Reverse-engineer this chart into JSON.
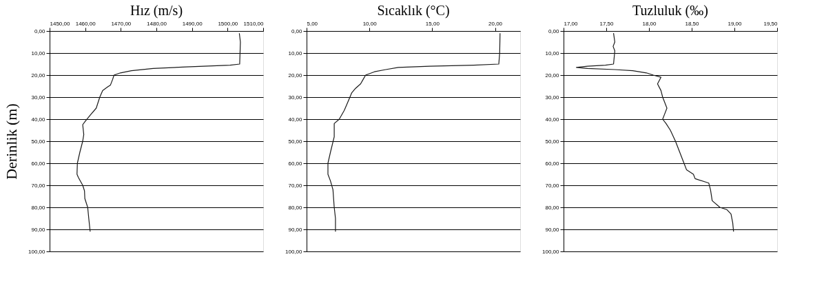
{
  "chart_data": [
    {
      "type": "line",
      "title": "Hız (m/s)",
      "ylabel": "Derinlik (m)",
      "xlim": [
        1450,
        1510
      ],
      "ylim": [
        100,
        0
      ],
      "grid": "y",
      "marker": "none",
      "line_style": "solid",
      "xticks": [
        {
          "value": 1450,
          "label": "1450,00"
        },
        {
          "value": 1460,
          "label": "1460,00"
        },
        {
          "value": 1470,
          "label": "1470,00"
        },
        {
          "value": 1480,
          "label": "1480,00"
        },
        {
          "value": 1490,
          "label": "1490,00"
        },
        {
          "value": 1500,
          "label": "1500,00"
        },
        {
          "value": 1510,
          "label": "1510,00"
        }
      ],
      "yticks": [
        {
          "value": 0,
          "label": "0,00"
        },
        {
          "value": 10,
          "label": "10,00"
        },
        {
          "value": 20,
          "label": "20,00"
        },
        {
          "value": 30,
          "label": "30,00"
        },
        {
          "value": 40,
          "label": "40,00"
        },
        {
          "value": 50,
          "label": "50,00"
        },
        {
          "value": 60,
          "label": "60,00"
        },
        {
          "value": 70,
          "label": "70,00"
        },
        {
          "value": 80,
          "label": "80,00"
        },
        {
          "value": 90,
          "label": "90,00"
        },
        {
          "value": 100,
          "label": "100,00"
        }
      ],
      "series": [
        {
          "color": "#1a1a1a",
          "x": [
            1503.3,
            1503.6,
            1503.4,
            1500.7,
            1488.4,
            1479.1,
            1473.0,
            1469.9,
            1468.1,
            1467.7,
            1467.1,
            1466.2,
            1464.9,
            1464.1,
            1463.1,
            1461.5,
            1460.0,
            1459.3,
            1459.4,
            1459.6,
            1459.3,
            1458.5,
            1457.8,
            1457.7,
            1458.1,
            1459.3,
            1459.8,
            1459.9,
            1460.7,
            1461.0,
            1461.4
          ],
          "values": [
            1,
            5,
            15,
            15.5,
            16.3,
            17,
            18,
            19,
            20,
            22,
            24.5,
            25.5,
            27,
            30,
            35,
            38,
            41,
            42.5,
            44,
            47,
            50,
            55,
            60,
            65,
            66.5,
            70,
            72.5,
            76,
            80,
            85,
            91
          ]
        }
      ]
    },
    {
      "type": "line",
      "title": "Sıcaklık (°C)",
      "xlim": [
        5,
        22
      ],
      "ylim": [
        100,
        0
      ],
      "grid": "y",
      "marker": "none",
      "line_style": "solid",
      "xticks": [
        {
          "value": 5,
          "label": "5,00"
        },
        {
          "value": 10,
          "label": "10,00"
        },
        {
          "value": 15,
          "label": "15,00"
        },
        {
          "value": 20,
          "label": "20,00"
        }
      ],
      "yticks": [
        {
          "value": 0,
          "label": "0,00"
        },
        {
          "value": 10,
          "label": "10,00"
        },
        {
          "value": 20,
          "label": "20,00"
        },
        {
          "value": 30,
          "label": "30,00"
        },
        {
          "value": 40,
          "label": "40,00"
        },
        {
          "value": 50,
          "label": "50,00"
        },
        {
          "value": 60,
          "label": "60,00"
        },
        {
          "value": 70,
          "label": "70,00"
        },
        {
          "value": 80,
          "label": "80,00"
        },
        {
          "value": 90,
          "label": "90,00"
        },
        {
          "value": 100,
          "label": "100,00"
        }
      ],
      "series": [
        {
          "color": "#1a1a1a",
          "x": [
            20.4,
            20.37,
            20.3,
            18.3,
            14.8,
            12.3,
            11.3,
            10.4,
            9.7,
            9.5,
            9.3,
            8.9,
            8.6,
            8.3,
            8.0,
            7.6,
            7.2,
            7.2,
            7.2,
            6.9,
            6.7,
            6.7,
            6.9,
            7.1,
            7.2,
            7.3,
            7.3
          ],
          "values": [
            1,
            10,
            15,
            15.5,
            16,
            16.5,
            17.5,
            18.5,
            20,
            22,
            24,
            26,
            28,
            32,
            36,
            40,
            42,
            43.5,
            48,
            55,
            60,
            65,
            68,
            72,
            80,
            85,
            91
          ]
        }
      ]
    },
    {
      "type": "line",
      "title": "Tuzluluk (‰)",
      "xlim": [
        17,
        19.5
      ],
      "ylim": [
        100,
        0
      ],
      "grid": "y",
      "marker": "none",
      "line_style": "solid",
      "xticks": [
        {
          "value": 17,
          "label": "17,00"
        },
        {
          "value": 17.5,
          "label": "17,50"
        },
        {
          "value": 18,
          "label": "18,00"
        },
        {
          "value": 18.5,
          "label": "18,50"
        },
        {
          "value": 19,
          "label": "19,00"
        },
        {
          "value": 19.5,
          "label": "19,50"
        }
      ],
      "yticks": [
        {
          "value": 0,
          "label": "0,00"
        },
        {
          "value": 10,
          "label": "10,00"
        },
        {
          "value": 20,
          "label": "20,00"
        },
        {
          "value": 30,
          "label": "30,00"
        },
        {
          "value": 40,
          "label": "40,00"
        },
        {
          "value": 50,
          "label": "50,00"
        },
        {
          "value": 60,
          "label": "60,00"
        },
        {
          "value": 70,
          "label": "70,00"
        },
        {
          "value": 80,
          "label": "80,00"
        },
        {
          "value": 90,
          "label": "90,00"
        },
        {
          "value": 100,
          "label": "100,00"
        }
      ],
      "series": [
        {
          "color": "#1a1a1a",
          "x": [
            17.585,
            17.6,
            17.58,
            17.6,
            17.585,
            17.49,
            17.28,
            17.15,
            17.28,
            17.6,
            17.81,
            17.97,
            18.05,
            18.14,
            18.12,
            18.1,
            18.14,
            18.16,
            18.21,
            18.18,
            18.16,
            18.2,
            18.25,
            18.31,
            18.36,
            18.41,
            18.44,
            18.52,
            18.54,
            18.7,
            18.72,
            18.74,
            18.83,
            18.91,
            18.96,
            18.98,
            18.99
          ],
          "values": [
            1,
            5,
            7,
            9,
            15,
            15.5,
            16,
            16.5,
            17,
            17.5,
            18,
            19,
            20,
            21,
            22.5,
            24,
            27,
            30,
            35,
            38,
            40,
            42,
            45,
            50,
            55,
            60,
            63,
            65,
            67,
            69,
            72,
            77,
            80,
            81,
            83,
            87,
            91
          ]
        }
      ]
    }
  ]
}
